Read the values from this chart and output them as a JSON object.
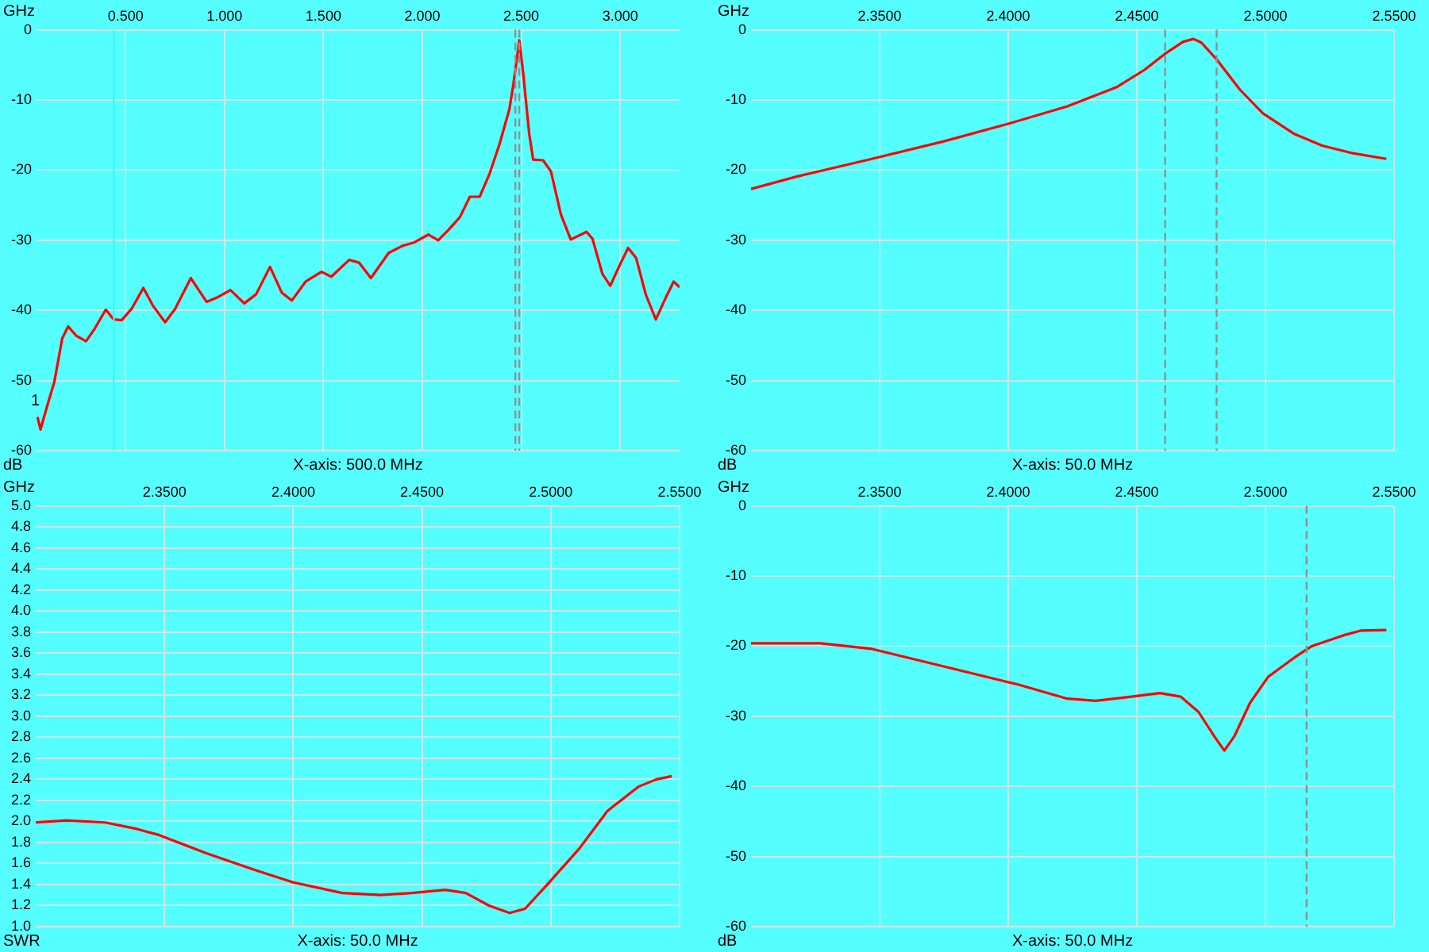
{
  "chart_data": [
    {
      "type": "line",
      "xlabel": "GHz",
      "ylabel": "dB",
      "xlim": [
        0.05,
        3.3
      ],
      "xticks": [
        {
          "value": 0.5,
          "label": "0.500"
        },
        {
          "value": 1,
          "label": "1.000"
        },
        {
          "value": 1.5,
          "label": "1.500"
        },
        {
          "value": 2,
          "label": "2.000"
        },
        {
          "value": 2.5,
          "label": "2.500"
        },
        {
          "value": 3,
          "label": "3.000"
        }
      ],
      "ylim": [
        -60,
        0
      ],
      "yticks": [
        -60,
        -50,
        -40,
        -30,
        -20,
        -10,
        0
      ],
      "grid": true,
      "x": [
        0.055,
        0.07,
        0.1,
        0.14,
        0.18,
        0.21,
        0.25,
        0.3,
        0.34,
        0.4,
        0.44,
        0.48,
        0.53,
        0.59,
        0.64,
        0.7,
        0.75,
        0.83,
        0.91,
        0.96,
        1.03,
        1.1,
        1.16,
        1.23,
        1.29,
        1.34,
        1.41,
        1.49,
        1.54,
        1.63,
        1.68,
        1.74,
        1.83,
        1.9,
        1.96,
        2.03,
        2.08,
        2.13,
        2.19,
        2.24,
        2.29,
        2.34,
        2.39,
        2.44,
        2.46,
        2.49,
        2.51,
        2.54,
        2.56,
        2.61,
        2.65,
        2.7,
        2.75,
        2.83,
        2.86,
        2.91,
        2.95,
        2.99,
        3.04,
        3.08,
        3.13,
        3.18,
        3.23,
        3.27,
        3.3
      ],
      "series": [
        {
          "color": "#ff0000",
          "values": [
            -55.2,
            -57,
            -54,
            -50.2,
            -44,
            -42.3,
            -43.6,
            -44.4,
            -42.8,
            -39.9,
            -41.3,
            -41.4,
            -39.8,
            -36.8,
            -39.4,
            -41.7,
            -39.8,
            -35.4,
            -38.8,
            -38.2,
            -37.1,
            -39,
            -37.7,
            -33.8,
            -37.5,
            -38.6,
            -35.9,
            -34.5,
            -35.2,
            -32.8,
            -33.2,
            -35.4,
            -31.8,
            -30.8,
            -30.3,
            -29.2,
            -30,
            -28.6,
            -26.7,
            -23.8,
            -23.8,
            -20.5,
            -16.3,
            -11.3,
            -7.8,
            -1.5,
            -6.3,
            -14.8,
            -18.5,
            -18.6,
            -20.2,
            -26.3,
            -29.9,
            -28.8,
            -29.8,
            -34.8,
            -36.5,
            -34,
            -31.1,
            -32.5,
            -37.8,
            -41.3,
            -38.2,
            -35.9,
            -36.7
          ]
        }
      ],
      "ref_lines": [
        {
          "axis": "x",
          "value": 0.44,
          "color": "#33ffee",
          "line_style": "solid"
        },
        {
          "axis": "x",
          "value": 2.47,
          "color": "#909090",
          "line_style": "dashed"
        },
        {
          "axis": "x",
          "value": 2.49,
          "color": "#909090",
          "line_style": "dashed"
        }
      ],
      "annotations": [
        {
          "text": "1",
          "x": 0.07,
          "y": -55
        },
        "X-axis: 500.0 MHz"
      ]
    },
    {
      "type": "line",
      "xlabel": "GHz",
      "ylabel": "dB",
      "xlim": [
        2.3,
        2.55
      ],
      "xticks": [
        {
          "value": 2.35,
          "label": "2.3500"
        },
        {
          "value": 2.4,
          "label": "2.4000"
        },
        {
          "value": 2.45,
          "label": "2.4500"
        },
        {
          "value": 2.5,
          "label": "2.5000"
        },
        {
          "value": 2.55,
          "label": "2.5500"
        }
      ],
      "ylim": [
        -60,
        0
      ],
      "yticks": [
        -60,
        -50,
        -40,
        -30,
        -20,
        -10,
        0
      ],
      "grid": true,
      "x": [
        2.3,
        2.318,
        2.347,
        2.375,
        2.4,
        2.423,
        2.442,
        2.453,
        2.461,
        2.468,
        2.472,
        2.475,
        2.481,
        2.49,
        2.499,
        2.511,
        2.522,
        2.534,
        2.547
      ],
      "series": [
        {
          "color": "#ff0000",
          "values": [
            -22.7,
            -20.9,
            -18.4,
            -15.9,
            -13.4,
            -10.9,
            -8.2,
            -5.7,
            -3.4,
            -1.7,
            -1.3,
            -1.8,
            -4.2,
            -8.5,
            -11.9,
            -14.8,
            -16.5,
            -17.6,
            -18.4
          ]
        }
      ],
      "ref_lines": [
        {
          "axis": "x",
          "value": 2.461,
          "color": "#909090",
          "line_style": "dashed"
        },
        {
          "axis": "x",
          "value": 2.481,
          "color": "#909090",
          "line_style": "dashed"
        }
      ],
      "annotations": [
        "X-axis: 50.0 MHz"
      ]
    },
    {
      "type": "line",
      "xlabel": "GHz",
      "ylabel": "SWR",
      "xlim": [
        2.3,
        2.55
      ],
      "xticks": [
        {
          "value": 2.35,
          "label": "2.3500"
        },
        {
          "value": 2.4,
          "label": "2.4000"
        },
        {
          "value": 2.45,
          "label": "2.4500"
        },
        {
          "value": 2.5,
          "label": "2.5000"
        },
        {
          "value": 2.55,
          "label": "2.5500"
        }
      ],
      "ylim": [
        1,
        5
      ],
      "yticks": [
        {
          "value": 1,
          "label": "1.0"
        },
        1.2,
        1.4,
        1.6,
        1.8,
        {
          "value": 2,
          "label": "2.0"
        },
        2.2,
        2.4,
        2.6,
        2.8,
        {
          "value": 3,
          "label": "3.0"
        },
        3.2,
        3.4,
        3.6,
        3.8,
        {
          "value": 4,
          "label": "4.0"
        },
        4.2,
        4.4,
        4.6,
        4.8,
        {
          "value": 5,
          "label": "5.0"
        }
      ],
      "grid": true,
      "x": [
        2.3,
        2.312,
        2.327,
        2.339,
        2.348,
        2.366,
        2.385,
        2.4,
        2.419,
        2.434,
        2.446,
        2.459,
        2.467,
        2.476,
        2.484,
        2.49,
        2.499,
        2.511,
        2.522,
        2.534,
        2.541,
        2.547
      ],
      "series": [
        {
          "color": "#ff0000",
          "values": [
            1.99,
            2.01,
            1.99,
            1.93,
            1.87,
            1.7,
            1.54,
            1.42,
            1.32,
            1.3,
            1.32,
            1.35,
            1.32,
            1.2,
            1.13,
            1.17,
            1.41,
            1.74,
            2.1,
            2.33,
            2.4,
            2.43
          ]
        }
      ],
      "annotations": [
        "X-axis: 50.0 MHz"
      ]
    },
    {
      "type": "line",
      "xlabel": "GHz",
      "ylabel": "dB",
      "xlim": [
        2.3,
        2.55
      ],
      "xticks": [
        {
          "value": 2.35,
          "label": "2.3500"
        },
        {
          "value": 2.4,
          "label": "2.4000"
        },
        {
          "value": 2.45,
          "label": "2.4500"
        },
        {
          "value": 2.5,
          "label": "2.5000"
        },
        {
          "value": 2.55,
          "label": "2.5500"
        }
      ],
      "ylim": [
        -60,
        0
      ],
      "yticks": [
        -60,
        -50,
        -40,
        -30,
        -20,
        -10,
        0
      ],
      "grid": true,
      "x": [
        2.3,
        2.327,
        2.347,
        2.366,
        2.385,
        2.404,
        2.423,
        2.434,
        2.446,
        2.459,
        2.467,
        2.474,
        2.48,
        2.484,
        2.488,
        2.494,
        2.501,
        2.511,
        2.518,
        2.53,
        2.537,
        2.547
      ],
      "series": [
        {
          "color": "#ff0000",
          "values": [
            -19.6,
            -19.6,
            -20.4,
            -22.1,
            -23.8,
            -25.5,
            -27.5,
            -27.8,
            -27.3,
            -26.7,
            -27.2,
            -29.4,
            -32.8,
            -34.9,
            -32.8,
            -28.1,
            -24.4,
            -21.7,
            -20,
            -18.5,
            -17.8,
            -17.7
          ]
        }
      ],
      "ref_lines": [
        {
          "axis": "x",
          "value": 2.516,
          "color": "#909090",
          "line_style": "dashed"
        }
      ],
      "annotations": [
        "X-axis: 50.0 MHz"
      ]
    }
  ]
}
